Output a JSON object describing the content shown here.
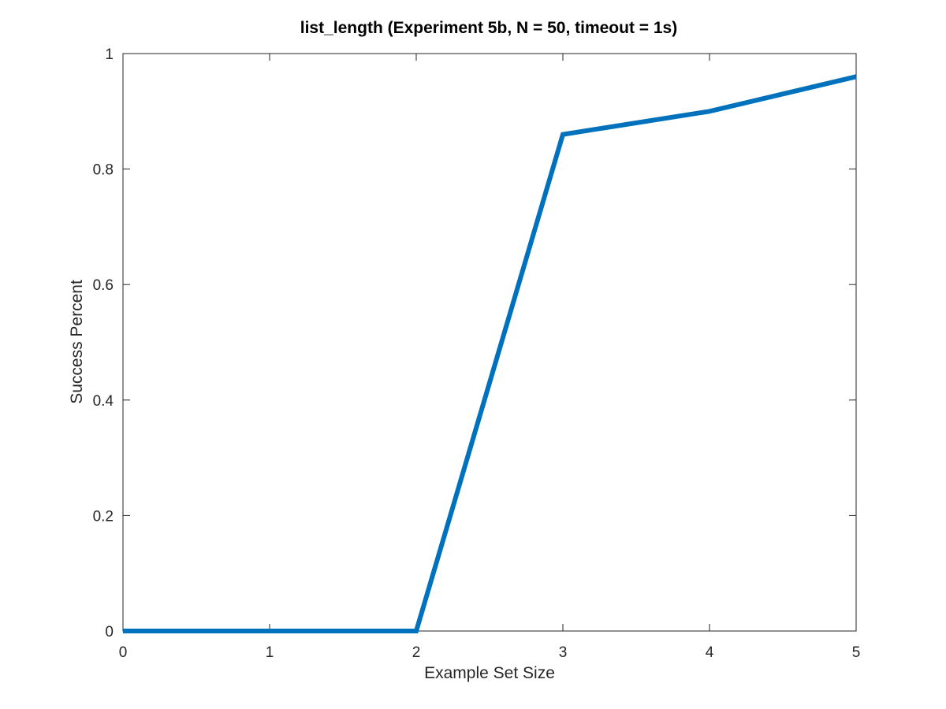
{
  "chart_data": {
    "type": "line",
    "title": "list_length (Experiment 5b, N = 50, timeout = 1s)",
    "xlabel": "Example Set Size",
    "ylabel": "Success Percent",
    "xlim": [
      0,
      5
    ],
    "ylim": [
      0,
      1
    ],
    "xticks": [
      0,
      1,
      2,
      3,
      4,
      5
    ],
    "xtick_labels": [
      "0",
      "1",
      "2",
      "3",
      "4",
      "5"
    ],
    "yticks": [
      0,
      0.2,
      0.4,
      0.6,
      0.8,
      1
    ],
    "ytick_labels": [
      "0",
      "0.2",
      "0.4",
      "0.6",
      "0.8",
      "1"
    ],
    "grid": false,
    "legend": "none",
    "series": [
      {
        "x": [
          0,
          1,
          2,
          3,
          4,
          5
        ],
        "values": [
          0,
          0,
          0,
          0.86,
          0.9,
          0.96
        ],
        "color": "#0072bd"
      }
    ]
  }
}
